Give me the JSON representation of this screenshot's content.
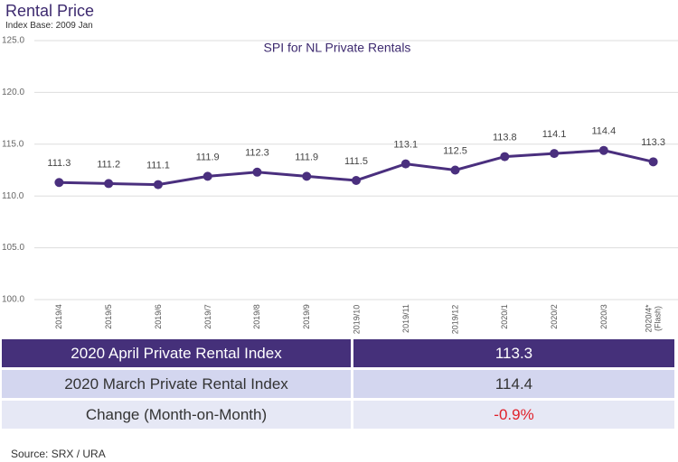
{
  "header": {
    "title": "Rental Price",
    "subtitle": "Index Base: 2009 Jan"
  },
  "chart_data": {
    "type": "line",
    "title": "SPI for NL Private Rentals",
    "categories": [
      "2019/4",
      "2019/5",
      "2019/6",
      "2019/7",
      "2019/8",
      "2019/9",
      "2019/10",
      "2019/11",
      "2019/12",
      "2020/1",
      "2020/2",
      "2020/3",
      "2020/4*\n(Flash)"
    ],
    "values": [
      111.3,
      111.2,
      111.1,
      111.9,
      112.3,
      111.9,
      111.5,
      113.1,
      112.5,
      113.8,
      114.1,
      114.4,
      113.3
    ],
    "color": "#4a2f7e",
    "ylim": [
      100,
      125
    ],
    "yticks": [
      {
        "value": 100,
        "label": "100.0"
      },
      {
        "value": 105,
        "label": "105.0"
      },
      {
        "value": 110,
        "label": "110.0"
      },
      {
        "value": 115,
        "label": "115.0"
      },
      {
        "value": 120,
        "label": "120.0"
      },
      {
        "value": 125,
        "label": "125.0"
      }
    ],
    "grid": true
  },
  "table": {
    "rows": [
      [
        "2020 April Private Rental Index",
        "113.3"
      ],
      [
        "2020 March Private Rental Index",
        "114.4"
      ],
      [
        "Change (Month-on-Month)",
        "-0.9%"
      ]
    ]
  },
  "source": "Source: SRX / URA"
}
